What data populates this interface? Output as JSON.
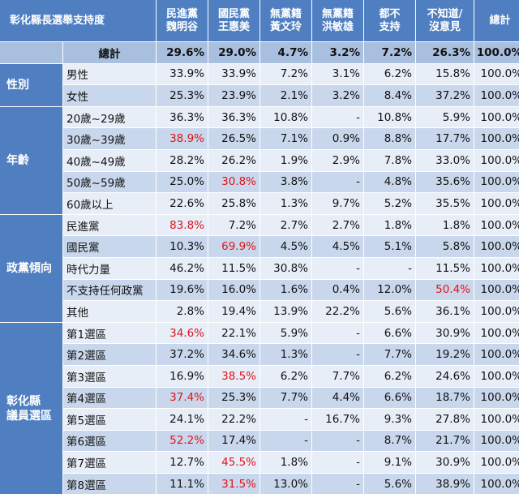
{
  "title": "彰化縣長選舉支持度",
  "columns": [
    "民進黨\n魏明谷",
    "國民黨\n王惠美",
    "無黨籍\n黃文玲",
    "無黨籍\n洪敏雄",
    "都不\n支持",
    "不知道/\n沒意見",
    "總計"
  ],
  "total_row": {
    "label": "總計",
    "values": [
      "29.6%",
      "29.0%",
      "4.7%",
      "3.2%",
      "7.2%",
      "26.3%",
      "100.0%"
    ]
  },
  "groups": [
    {
      "name": "性別",
      "rows": [
        {
          "label": "男性",
          "values": [
            "33.9%",
            "33.9%",
            "7.2%",
            "3.1%",
            "6.2%",
            "15.8%",
            "100.0%"
          ],
          "red": []
        },
        {
          "label": "女性",
          "values": [
            "25.3%",
            "23.9%",
            "2.1%",
            "3.2%",
            "8.4%",
            "37.2%",
            "100.0%"
          ],
          "red": []
        }
      ]
    },
    {
      "name": "年齡",
      "rows": [
        {
          "label": "20歲~29歲",
          "values": [
            "36.3%",
            "36.3%",
            "10.8%",
            "-",
            "10.8%",
            "5.9%",
            "100.0%"
          ],
          "red": []
        },
        {
          "label": "30歲~39歲",
          "values": [
            "38.9%",
            "26.5%",
            "7.1%",
            "0.9%",
            "8.8%",
            "17.7%",
            "100.0%"
          ],
          "red": [
            0
          ]
        },
        {
          "label": "40歲~49歲",
          "values": [
            "28.2%",
            "26.2%",
            "1.9%",
            "2.9%",
            "7.8%",
            "33.0%",
            "100.0%"
          ],
          "red": []
        },
        {
          "label": "50歲~59歲",
          "values": [
            "25.0%",
            "30.8%",
            "3.8%",
            "-",
            "4.8%",
            "35.6%",
            "100.0%"
          ],
          "red": [
            1
          ]
        },
        {
          "label": "60歲以上",
          "values": [
            "22.6%",
            "25.8%",
            "1.3%",
            "9.7%",
            "5.2%",
            "35.5%",
            "100.0%"
          ],
          "red": []
        }
      ]
    },
    {
      "name": "政黨傾向",
      "rows": [
        {
          "label": "民進黨",
          "values": [
            "83.8%",
            "7.2%",
            "2.7%",
            "2.7%",
            "1.8%",
            "1.8%",
            "100.0%"
          ],
          "red": [
            0
          ]
        },
        {
          "label": "國民黨",
          "values": [
            "10.3%",
            "69.9%",
            "4.5%",
            "4.5%",
            "5.1%",
            "5.8%",
            "100.0%"
          ],
          "red": [
            1
          ]
        },
        {
          "label": "時代力量",
          "values": [
            "46.2%",
            "11.5%",
            "30.8%",
            "-",
            "-",
            "11.5%",
            "100.0%"
          ],
          "red": []
        },
        {
          "label": "不支持任何政黨",
          "values": [
            "19.6%",
            "16.0%",
            "1.6%",
            "0.4%",
            "12.0%",
            "50.4%",
            "100.0%"
          ],
          "red": [
            5
          ]
        },
        {
          "label": "其他",
          "values": [
            "2.8%",
            "19.4%",
            "13.9%",
            "22.2%",
            "5.6%",
            "36.1%",
            "100.0%"
          ],
          "red": []
        }
      ]
    },
    {
      "name": "彰化縣\n議員選區",
      "rows": [
        {
          "label": "第1選區",
          "values": [
            "34.6%",
            "22.1%",
            "5.9%",
            "-",
            "6.6%",
            "30.9%",
            "100.0%"
          ],
          "red": [
            0
          ]
        },
        {
          "label": "第2選區",
          "values": [
            "37.2%",
            "34.6%",
            "1.3%",
            "-",
            "7.7%",
            "19.2%",
            "100.0%"
          ],
          "red": []
        },
        {
          "label": "第3選區",
          "values": [
            "16.9%",
            "38.5%",
            "6.2%",
            "7.7%",
            "6.2%",
            "24.6%",
            "100.0%"
          ],
          "red": [
            1
          ]
        },
        {
          "label": "第4選區",
          "values": [
            "37.4%",
            "25.3%",
            "7.7%",
            "4.4%",
            "6.6%",
            "18.7%",
            "100.0%"
          ],
          "red": [
            0
          ]
        },
        {
          "label": "第5選區",
          "values": [
            "24.1%",
            "22.2%",
            "-",
            "16.7%",
            "9.3%",
            "27.8%",
            "100.0%"
          ],
          "red": []
        },
        {
          "label": "第6選區",
          "values": [
            "52.2%",
            "17.4%",
            "-",
            "-",
            "8.7%",
            "21.7%",
            "100.0%"
          ],
          "red": [
            0
          ]
        },
        {
          "label": "第7選區",
          "values": [
            "12.7%",
            "45.5%",
            "1.8%",
            "-",
            "9.1%",
            "30.9%",
            "100.0%"
          ],
          "red": [
            1
          ]
        },
        {
          "label": "第8選區",
          "values": [
            "11.1%",
            "31.5%",
            "13.0%",
            "-",
            "5.6%",
            "38.9%",
            "100.0%"
          ],
          "red": [
            1
          ]
        }
      ]
    }
  ],
  "colors": {
    "header_bg": "#4f7fc1",
    "total_bg": "#a9bfdf",
    "row_light": "#e8eef7",
    "row_dark": "#c9d7ec",
    "highlight": "#e0131a"
  }
}
